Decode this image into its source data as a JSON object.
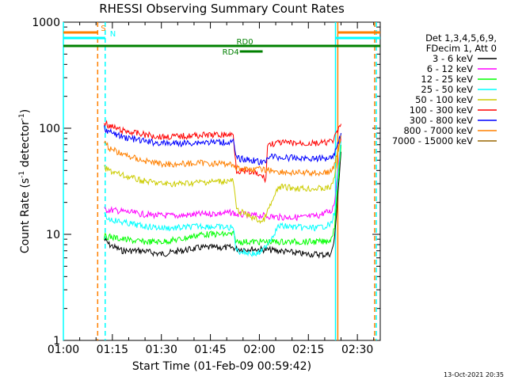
{
  "chart_data": {
    "type": "line",
    "title": "RHESSI Observing Summary Count Rates",
    "xlabel": "Start Time (01-Feb-09 00:59:42)",
    "ylabel_main": "Count Rate (s",
    "ylabel_sup1": "-1",
    "ylabel_mid": " detector",
    "ylabel_sup2": "-1",
    "ylabel_end": ")",
    "yscale": "log",
    "ylim": [
      1,
      1000
    ],
    "xlim_minutes": [
      60,
      157
    ],
    "x_ticks": [
      {
        "minutes": 60,
        "label": "01:00"
      },
      {
        "minutes": 75,
        "label": "01:15"
      },
      {
        "minutes": 90,
        "label": "01:30"
      },
      {
        "minutes": 105,
        "label": "01:45"
      },
      {
        "minutes": 120,
        "label": "02:00"
      },
      {
        "minutes": 135,
        "label": "02:15"
      },
      {
        "minutes": 150,
        "label": "02:30"
      }
    ],
    "y_ticks": [
      {
        "value": 1,
        "label": "1"
      },
      {
        "value": 10,
        "label": "10"
      },
      {
        "value": 100,
        "label": "100"
      },
      {
        "value": 1000,
        "label": "1000"
      }
    ],
    "legend": {
      "placement": "right",
      "header": [
        "Det 1,3,4,5,6,9,",
        "FDecim 1, Att 0"
      ]
    },
    "series": [
      {
        "name": "3 - 6 keV",
        "color": "#000000",
        "points": [
          [
            72.5,
            9
          ],
          [
            74,
            8
          ],
          [
            78,
            7
          ],
          [
            84,
            7
          ],
          [
            90,
            6.5
          ],
          [
            96,
            7
          ],
          [
            102,
            7.5
          ],
          [
            112,
            7.5
          ],
          [
            113,
            7.3
          ],
          [
            121,
            7.2
          ],
          [
            126,
            7
          ],
          [
            134,
            6.5
          ],
          [
            138,
            6.5
          ],
          [
            140,
            6.4
          ],
          [
            142,
            6.6
          ],
          [
            143,
            9
          ],
          [
            145,
            60
          ]
        ]
      },
      {
        "name": "6 - 12 keV",
        "color": "#ff00ff",
        "points": [
          [
            72.5,
            17
          ],
          [
            74,
            17
          ],
          [
            78,
            16.5
          ],
          [
            84,
            15.5
          ],
          [
            90,
            15
          ],
          [
            96,
            15
          ],
          [
            102,
            15.5
          ],
          [
            112,
            16
          ],
          [
            113,
            15.3
          ],
          [
            121,
            15
          ],
          [
            126,
            14.5
          ],
          [
            134,
            14.5
          ],
          [
            138,
            15
          ],
          [
            140,
            16
          ],
          [
            142,
            16.5
          ],
          [
            143,
            20
          ],
          [
            145,
            80
          ]
        ]
      },
      {
        "name": "12 - 25 keV",
        "color": "#00ff00",
        "points": [
          [
            72.5,
            9.5
          ],
          [
            74,
            9.5
          ],
          [
            78,
            9
          ],
          [
            84,
            8.5
          ],
          [
            90,
            8.5
          ],
          [
            96,
            9
          ],
          [
            102,
            10
          ],
          [
            108,
            10
          ],
          [
            112,
            10
          ],
          [
            113,
            8.5
          ],
          [
            121,
            8.5
          ],
          [
            126,
            8.5
          ],
          [
            134,
            8.5
          ],
          [
            138,
            8.5
          ],
          [
            140,
            8.5
          ],
          [
            142,
            9
          ],
          [
            143,
            12
          ],
          [
            145,
            70
          ]
        ]
      },
      {
        "name": "25 - 50 keV",
        "color": "#00ffff",
        "points": [
          [
            72.5,
            15
          ],
          [
            74,
            14
          ],
          [
            78,
            13
          ],
          [
            84,
            12
          ],
          [
            90,
            11.5
          ],
          [
            96,
            11.5
          ],
          [
            102,
            12
          ],
          [
            112,
            11.5
          ],
          [
            113,
            7
          ],
          [
            119,
            6.5
          ],
          [
            121,
            7
          ],
          [
            126,
            12
          ],
          [
            134,
            11.5
          ],
          [
            138,
            11.5
          ],
          [
            140,
            12
          ],
          [
            142,
            12.5
          ],
          [
            143,
            16
          ],
          [
            145,
            75
          ]
        ]
      },
      {
        "name": "50 - 100 keV",
        "color": "#cccc00",
        "points": [
          [
            72.5,
            42
          ],
          [
            74,
            40
          ],
          [
            78,
            36
          ],
          [
            84,
            32
          ],
          [
            90,
            30
          ],
          [
            96,
            30
          ],
          [
            102,
            31
          ],
          [
            112,
            32
          ],
          [
            113,
            17
          ],
          [
            121,
            13
          ],
          [
            126,
            28
          ],
          [
            134,
            27
          ],
          [
            138,
            27
          ],
          [
            140,
            27
          ],
          [
            142,
            28
          ],
          [
            143,
            35
          ],
          [
            145,
            90
          ]
        ]
      },
      {
        "name": "100 - 300 keV",
        "color": "#ff0000",
        "points": [
          [
            72.5,
            115
          ],
          [
            74,
            105
          ],
          [
            78,
            95
          ],
          [
            84,
            88
          ],
          [
            90,
            83
          ],
          [
            96,
            84
          ],
          [
            102,
            86
          ],
          [
            112,
            87
          ],
          [
            113,
            40
          ],
          [
            118,
            38
          ],
          [
            121,
            35
          ],
          [
            122,
            33
          ],
          [
            122.5,
            70
          ],
          [
            126,
            73
          ],
          [
            134,
            72
          ],
          [
            138,
            72
          ],
          [
            140,
            73
          ],
          [
            142,
            75
          ],
          [
            143,
            80
          ],
          [
            145,
            110
          ]
        ]
      },
      {
        "name": "300 - 800 keV",
        "color": "#0000ff",
        "points": [
          [
            72.5,
            100
          ],
          [
            74,
            92
          ],
          [
            78,
            83
          ],
          [
            84,
            76
          ],
          [
            90,
            72
          ],
          [
            96,
            72
          ],
          [
            102,
            74
          ],
          [
            112,
            74
          ],
          [
            113,
            52
          ],
          [
            118,
            50
          ],
          [
            121,
            47
          ],
          [
            122,
            48
          ],
          [
            122.5,
            55
          ],
          [
            126,
            53
          ],
          [
            134,
            52
          ],
          [
            138,
            52
          ],
          [
            140,
            52
          ],
          [
            142,
            54
          ],
          [
            143,
            58
          ],
          [
            145,
            90
          ]
        ]
      },
      {
        "name": "800 - 7000 keV",
        "color": "#ff8000",
        "points": [
          [
            72.5,
            75
          ],
          [
            74,
            65
          ],
          [
            78,
            57
          ],
          [
            84,
            50
          ],
          [
            90,
            46
          ],
          [
            96,
            46
          ],
          [
            102,
            47
          ],
          [
            112,
            46
          ],
          [
            113,
            42
          ],
          [
            118,
            41
          ],
          [
            121,
            41
          ],
          [
            124,
            40
          ],
          [
            126,
            39
          ],
          [
            130,
            38
          ],
          [
            134,
            38
          ],
          [
            138,
            38
          ],
          [
            140,
            38
          ],
          [
            142,
            39
          ],
          [
            143,
            45
          ],
          [
            145,
            85
          ]
        ]
      },
      {
        "name": "7000 - 15000 keV",
        "color": "#996600",
        "points": []
      }
    ],
    "markers": {
      "vertical_lines": [
        {
          "minutes": 60,
          "color": "#00ffff",
          "dash": false
        },
        {
          "minutes": 70.5,
          "color": "#ff8000",
          "dash": true
        },
        {
          "minutes": 72.8,
          "color": "#00ffff",
          "dash": true
        },
        {
          "minutes": 143.3,
          "color": "#00ffff",
          "dash": false
        },
        {
          "minutes": 144.0,
          "color": "#ff8000",
          "dash": false
        },
        {
          "minutes": 155.3,
          "color": "#ff8000",
          "dash": true
        },
        {
          "minutes": 155.8,
          "color": "#00ffff",
          "dash": true
        }
      ],
      "flag_bars": [
        {
          "label": "S",
          "color": "#ff8000",
          "level": 1,
          "spans": [
            [
              60,
              70.5
            ],
            [
              144.0,
              157
            ]
          ]
        },
        {
          "label": "N",
          "color": "#00ffff",
          "level": 2,
          "spans": [
            [
              60,
              72.8
            ],
            [
              143.3,
              157
            ]
          ]
        },
        {
          "label": "RD0",
          "color": "#008000",
          "level": 3,
          "spans": [
            [
              60,
              157
            ]
          ]
        },
        {
          "label": "RD4",
          "color": "#008000",
          "level": 4,
          "spans": [
            [
              114,
              121
            ]
          ]
        }
      ]
    }
  },
  "footer": {
    "date_stamp": "13-Oct-2021 20:35"
  }
}
